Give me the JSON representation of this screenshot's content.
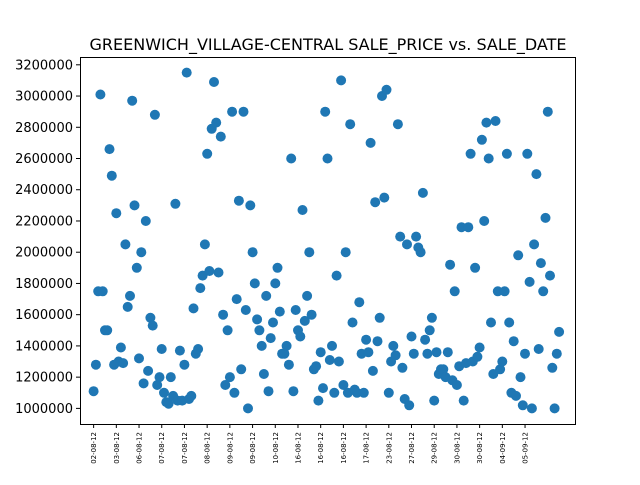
{
  "chart_data": {
    "type": "scatter",
    "title": "GREENWICH_VILLAGE-CENTRAL SALE_PRICE vs. SALE_DATE",
    "xlabel": "",
    "ylabel": "",
    "grid": false,
    "ylim": [
      900000,
      3250000
    ],
    "yticks": [
      1000000,
      1200000,
      1400000,
      1600000,
      1800000,
      2000000,
      2200000,
      2400000,
      2600000,
      2800000,
      3000000,
      3200000
    ],
    "ytick_labels": [
      "1000000",
      "1200000",
      "1400000",
      "1600000",
      "1800000",
      "2000000",
      "2200000",
      "2400000",
      "2600000",
      "2800000",
      "3000000",
      "3200000"
    ],
    "xlim": [
      -3,
      106
    ],
    "xticks": [
      0,
      5,
      10,
      15,
      20,
      25,
      30,
      35,
      40,
      45,
      50,
      55,
      60,
      65,
      70,
      75,
      80,
      85,
      90,
      95
    ],
    "xtick_labels": [
      "02-08-12",
      "03-08-12",
      "06-08-12",
      "07-08-12",
      "07-08-12",
      "08-08-12",
      "09-08-12",
      "09-08-12",
      "10-08-12",
      "16-08-12",
      "16-08-12",
      "16-08-12",
      "17-08-12",
      "23-08-12",
      "27-08-12",
      "29-08-12",
      "30-08-12",
      "30-08-12",
      "04-09-12",
      "05-09-12"
    ],
    "x_note_units": "sale index (ordered by sale date)",
    "points": [
      {
        "x": 0.0,
        "y": 1110000
      },
      {
        "x": 0.5,
        "y": 1280000
      },
      {
        "x": 1.0,
        "y": 1750000
      },
      {
        "x": 1.5,
        "y": 3010000
      },
      {
        "x": 2.0,
        "y": 1750000
      },
      {
        "x": 2.5,
        "y": 1500000
      },
      {
        "x": 3.0,
        "y": 1500000
      },
      {
        "x": 3.5,
        "y": 2660000
      },
      {
        "x": 4.0,
        "y": 2490000
      },
      {
        "x": 4.5,
        "y": 1280000
      },
      {
        "x": 5.0,
        "y": 2250000
      },
      {
        "x": 5.5,
        "y": 1300000
      },
      {
        "x": 6.0,
        "y": 1390000
      },
      {
        "x": 6.5,
        "y": 1290000
      },
      {
        "x": 7.0,
        "y": 2050000
      },
      {
        "x": 7.5,
        "y": 1650000
      },
      {
        "x": 8.0,
        "y": 1720000
      },
      {
        "x": 8.5,
        "y": 2970000
      },
      {
        "x": 9.0,
        "y": 2300000
      },
      {
        "x": 9.5,
        "y": 1900000
      },
      {
        "x": 10.0,
        "y": 1320000
      },
      {
        "x": 10.5,
        "y": 2000000
      },
      {
        "x": 11.0,
        "y": 1160000
      },
      {
        "x": 11.5,
        "y": 2200000
      },
      {
        "x": 12.0,
        "y": 1240000
      },
      {
        "x": 12.5,
        "y": 1580000
      },
      {
        "x": 13.0,
        "y": 1530000
      },
      {
        "x": 13.5,
        "y": 2880000
      },
      {
        "x": 14.0,
        "y": 1150000
      },
      {
        "x": 14.5,
        "y": 1200000
      },
      {
        "x": 15.0,
        "y": 1380000
      },
      {
        "x": 15.5,
        "y": 1100000
      },
      {
        "x": 16.0,
        "y": 1040000
      },
      {
        "x": 16.5,
        "y": 1030000
      },
      {
        "x": 17.0,
        "y": 1200000
      },
      {
        "x": 17.5,
        "y": 1080000
      },
      {
        "x": 18.0,
        "y": 2310000
      },
      {
        "x": 18.5,
        "y": 1050000
      },
      {
        "x": 19.0,
        "y": 1370000
      },
      {
        "x": 19.5,
        "y": 1050000
      },
      {
        "x": 20.0,
        "y": 1280000
      },
      {
        "x": 20.5,
        "y": 3150000
      },
      {
        "x": 21.0,
        "y": 1060000
      },
      {
        "x": 21.5,
        "y": 1080000
      },
      {
        "x": 22.0,
        "y": 1640000
      },
      {
        "x": 22.5,
        "y": 1350000
      },
      {
        "x": 23.0,
        "y": 1380000
      },
      {
        "x": 23.5,
        "y": 1770000
      },
      {
        "x": 24.0,
        "y": 1850000
      },
      {
        "x": 24.5,
        "y": 2050000
      },
      {
        "x": 25.0,
        "y": 2630000
      },
      {
        "x": 25.5,
        "y": 1880000
      },
      {
        "x": 26.0,
        "y": 2790000
      },
      {
        "x": 26.5,
        "y": 3090000
      },
      {
        "x": 27.0,
        "y": 2830000
      },
      {
        "x": 27.5,
        "y": 1870000
      },
      {
        "x": 28.0,
        "y": 2740000
      },
      {
        "x": 28.5,
        "y": 1600000
      },
      {
        "x": 29.0,
        "y": 1150000
      },
      {
        "x": 29.5,
        "y": 1500000
      },
      {
        "x": 30.0,
        "y": 1200000
      },
      {
        "x": 30.5,
        "y": 2900000
      },
      {
        "x": 31.0,
        "y": 1100000
      },
      {
        "x": 31.5,
        "y": 1700000
      },
      {
        "x": 32.0,
        "y": 2330000
      },
      {
        "x": 32.5,
        "y": 1250000
      },
      {
        "x": 33.0,
        "y": 2900000
      },
      {
        "x": 33.5,
        "y": 1630000
      },
      {
        "x": 34.0,
        "y": 1000000
      },
      {
        "x": 34.5,
        "y": 2300000
      },
      {
        "x": 35.0,
        "y": 2000000
      },
      {
        "x": 35.5,
        "y": 1800000
      },
      {
        "x": 36.0,
        "y": 1570000
      },
      {
        "x": 36.5,
        "y": 1500000
      },
      {
        "x": 37.0,
        "y": 1400000
      },
      {
        "x": 37.5,
        "y": 1220000
      },
      {
        "x": 38.0,
        "y": 1720000
      },
      {
        "x": 38.5,
        "y": 1110000
      },
      {
        "x": 39.0,
        "y": 1450000
      },
      {
        "x": 39.5,
        "y": 1550000
      },
      {
        "x": 40.0,
        "y": 1800000
      },
      {
        "x": 40.5,
        "y": 1900000
      },
      {
        "x": 41.0,
        "y": 1620000
      },
      {
        "x": 41.5,
        "y": 1350000
      },
      {
        "x": 42.0,
        "y": 1350000
      },
      {
        "x": 42.5,
        "y": 1400000
      },
      {
        "x": 43.0,
        "y": 1280000
      },
      {
        "x": 43.5,
        "y": 2600000
      },
      {
        "x": 44.0,
        "y": 1110000
      },
      {
        "x": 44.5,
        "y": 1630000
      },
      {
        "x": 45.0,
        "y": 1500000
      },
      {
        "x": 45.5,
        "y": 1460000
      },
      {
        "x": 46.0,
        "y": 2270000
      },
      {
        "x": 46.5,
        "y": 1560000
      },
      {
        "x": 47.0,
        "y": 1720000
      },
      {
        "x": 47.5,
        "y": 2000000
      },
      {
        "x": 48.0,
        "y": 1600000
      },
      {
        "x": 48.5,
        "y": 1250000
      },
      {
        "x": 49.0,
        "y": 1270000
      },
      {
        "x": 49.5,
        "y": 1050000
      },
      {
        "x": 50.0,
        "y": 1360000
      },
      {
        "x": 50.5,
        "y": 1130000
      },
      {
        "x": 51.0,
        "y": 2900000
      },
      {
        "x": 51.5,
        "y": 2600000
      },
      {
        "x": 52.0,
        "y": 1310000
      },
      {
        "x": 52.5,
        "y": 1400000
      },
      {
        "x": 53.0,
        "y": 1100000
      },
      {
        "x": 53.5,
        "y": 1850000
      },
      {
        "x": 54.0,
        "y": 1300000
      },
      {
        "x": 54.5,
        "y": 3100000
      },
      {
        "x": 55.0,
        "y": 1150000
      },
      {
        "x": 55.5,
        "y": 2000000
      },
      {
        "x": 56.0,
        "y": 1100000
      },
      {
        "x": 56.5,
        "y": 2820000
      },
      {
        "x": 57.0,
        "y": 1550000
      },
      {
        "x": 57.5,
        "y": 1120000
      },
      {
        "x": 58.0,
        "y": 1100000
      },
      {
        "x": 58.5,
        "y": 1680000
      },
      {
        "x": 59.0,
        "y": 1350000
      },
      {
        "x": 59.5,
        "y": 1100000
      },
      {
        "x": 60.0,
        "y": 1440000
      },
      {
        "x": 60.5,
        "y": 1360000
      },
      {
        "x": 61.0,
        "y": 2700000
      },
      {
        "x": 61.5,
        "y": 1240000
      },
      {
        "x": 62.0,
        "y": 2320000
      },
      {
        "x": 62.5,
        "y": 1430000
      },
      {
        "x": 63.0,
        "y": 1580000
      },
      {
        "x": 63.5,
        "y": 3000000
      },
      {
        "x": 64.0,
        "y": 2350000
      },
      {
        "x": 64.5,
        "y": 3040000
      },
      {
        "x": 65.0,
        "y": 1100000
      },
      {
        "x": 65.5,
        "y": 1300000
      },
      {
        "x": 66.0,
        "y": 1400000
      },
      {
        "x": 66.5,
        "y": 1340000
      },
      {
        "x": 67.0,
        "y": 2820000
      },
      {
        "x": 67.5,
        "y": 2100000
      },
      {
        "x": 68.0,
        "y": 1260000
      },
      {
        "x": 68.5,
        "y": 1060000
      },
      {
        "x": 69.0,
        "y": 2050000
      },
      {
        "x": 69.5,
        "y": 1020000
      },
      {
        "x": 70.0,
        "y": 1460000
      },
      {
        "x": 70.5,
        "y": 1350000
      },
      {
        "x": 71.0,
        "y": 2100000
      },
      {
        "x": 71.5,
        "y": 2030000
      },
      {
        "x": 72.0,
        "y": 2000000
      },
      {
        "x": 72.5,
        "y": 2380000
      },
      {
        "x": 73.0,
        "y": 1440000
      },
      {
        "x": 73.5,
        "y": 1350000
      },
      {
        "x": 74.0,
        "y": 1500000
      },
      {
        "x": 74.5,
        "y": 1580000
      },
      {
        "x": 75.0,
        "y": 1050000
      },
      {
        "x": 75.5,
        "y": 1360000
      },
      {
        "x": 76.0,
        "y": 1220000
      },
      {
        "x": 76.5,
        "y": 1250000
      },
      {
        "x": 77.0,
        "y": 1250000
      },
      {
        "x": 77.5,
        "y": 1200000
      },
      {
        "x": 78.0,
        "y": 1360000
      },
      {
        "x": 78.5,
        "y": 1920000
      },
      {
        "x": 79.0,
        "y": 1180000
      },
      {
        "x": 79.5,
        "y": 1750000
      },
      {
        "x": 80.0,
        "y": 1150000
      },
      {
        "x": 80.5,
        "y": 1270000
      },
      {
        "x": 81.0,
        "y": 2160000
      },
      {
        "x": 81.5,
        "y": 1050000
      },
      {
        "x": 82.0,
        "y": 1290000
      },
      {
        "x": 82.5,
        "y": 2160000
      },
      {
        "x": 83.0,
        "y": 2630000
      },
      {
        "x": 83.5,
        "y": 1300000
      },
      {
        "x": 84.0,
        "y": 1900000
      },
      {
        "x": 84.5,
        "y": 1330000
      },
      {
        "x": 85.0,
        "y": 1390000
      },
      {
        "x": 85.5,
        "y": 2720000
      },
      {
        "x": 86.0,
        "y": 2200000
      },
      {
        "x": 86.5,
        "y": 2830000
      },
      {
        "x": 87.0,
        "y": 2600000
      },
      {
        "x": 87.5,
        "y": 1550000
      },
      {
        "x": 88.0,
        "y": 1220000
      },
      {
        "x": 88.5,
        "y": 2840000
      },
      {
        "x": 89.0,
        "y": 1750000
      },
      {
        "x": 89.5,
        "y": 1250000
      },
      {
        "x": 90.0,
        "y": 1300000
      },
      {
        "x": 90.5,
        "y": 1750000
      },
      {
        "x": 91.0,
        "y": 2630000
      },
      {
        "x": 91.5,
        "y": 1550000
      },
      {
        "x": 92.0,
        "y": 1100000
      },
      {
        "x": 92.5,
        "y": 1430000
      },
      {
        "x": 93.0,
        "y": 1080000
      },
      {
        "x": 93.5,
        "y": 1980000
      },
      {
        "x": 94.0,
        "y": 1200000
      },
      {
        "x": 94.5,
        "y": 1020000
      },
      {
        "x": 95.0,
        "y": 1350000
      },
      {
        "x": 95.5,
        "y": 2630000
      },
      {
        "x": 96.0,
        "y": 1810000
      },
      {
        "x": 96.5,
        "y": 1000000
      },
      {
        "x": 97.0,
        "y": 2050000
      },
      {
        "x": 97.5,
        "y": 2500000
      },
      {
        "x": 98.0,
        "y": 1380000
      },
      {
        "x": 98.5,
        "y": 1930000
      },
      {
        "x": 99.0,
        "y": 1750000
      },
      {
        "x": 99.5,
        "y": 2220000
      },
      {
        "x": 100.0,
        "y": 2900000
      },
      {
        "x": 100.5,
        "y": 1850000
      },
      {
        "x": 101.0,
        "y": 1260000
      },
      {
        "x": 101.5,
        "y": 1000000
      },
      {
        "x": 102.0,
        "y": 1350000
      },
      {
        "x": 102.5,
        "y": 1490000
      }
    ],
    "marker_color": "#1f77b4"
  }
}
